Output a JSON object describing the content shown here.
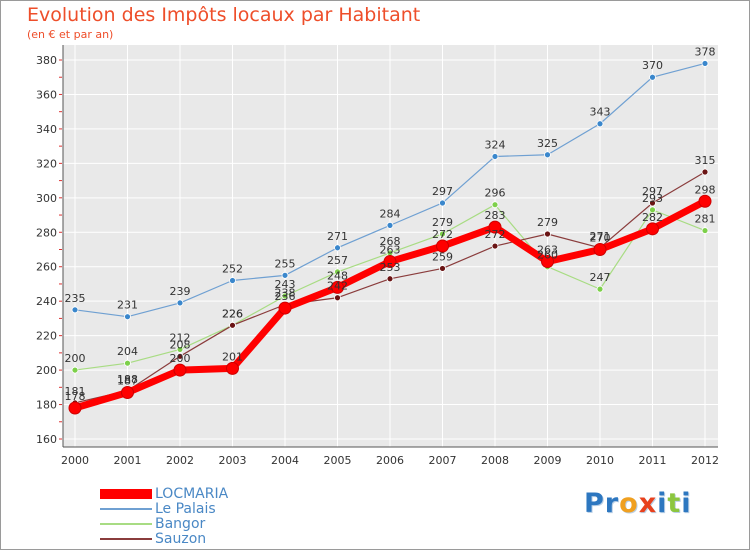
{
  "chart_data": {
    "type": "line",
    "title": "Evolution des Impôts locaux par Habitant",
    "subtitle": "(en € et par an)",
    "xlabel": "",
    "ylabel": "",
    "ylim": [
      160,
      380
    ],
    "yticks": [
      160,
      180,
      200,
      220,
      240,
      260,
      280,
      300,
      320,
      340,
      360,
      380
    ],
    "grid": true,
    "categories": [
      "2000",
      "2001",
      "2002",
      "2003",
      "2004",
      "2005",
      "2006",
      "2007",
      "2008",
      "2009",
      "2010",
      "2011",
      "2012"
    ],
    "series": [
      {
        "name": "LOCMARIA",
        "color": "#ff0000",
        "values": [
          178,
          187,
          200,
          201,
          236,
          248,
          263,
          272,
          283,
          263,
          270,
          282,
          298
        ]
      },
      {
        "name": "Le Palais",
        "color": "#6fa0d2",
        "values": [
          235,
          231,
          239,
          252,
          255,
          271,
          284,
          297,
          324,
          325,
          343,
          370,
          378
        ]
      },
      {
        "name": "Bangor",
        "color": "#a8dc83",
        "values": [
          200,
          204,
          212,
          226,
          243,
          257,
          268,
          279,
          296,
          260,
          247,
          293,
          281
        ]
      },
      {
        "name": "Sauzon",
        "color": "#8a3c3c",
        "values": [
          181,
          188,
          208,
          226,
          238,
          242,
          253,
          259,
          272,
          279,
          271,
          297,
          315
        ]
      }
    ],
    "legend_position": "bottom-left"
  },
  "logo": {
    "letters": [
      "P",
      "r",
      "o",
      "x",
      "i",
      "t",
      "i"
    ]
  }
}
